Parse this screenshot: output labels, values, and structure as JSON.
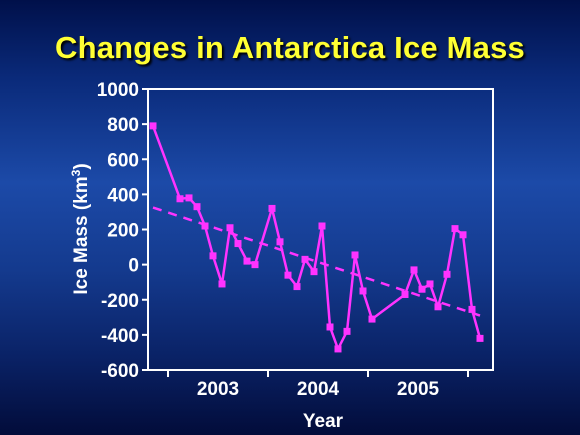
{
  "chart_data": {
    "type": "line",
    "title": "Changes in Antarctica Ice Mass",
    "xlabel": "Year",
    "ylabel": "Ice Mass (km",
    "ylabel_sup": "3",
    "ylabel_close": ")",
    "xlim": [
      2002.3,
      2005.75
    ],
    "ylim": [
      -600,
      1000
    ],
    "yticks": [
      1000,
      800,
      600,
      400,
      200,
      0,
      -200,
      -400,
      -600
    ],
    "xticks": [
      2003,
      2004,
      2005
    ],
    "xtick_labels": [
      "2003",
      "2004",
      "2005"
    ],
    "minor_xticks": [
      2002.5,
      2003.5,
      2004.5,
      2005.5
    ],
    "series": [
      {
        "color": "#ff33ff",
        "marker": "square",
        "x": [
          2002.35,
          2002.62,
          2002.71,
          2002.79,
          2002.87,
          2002.95,
          2003.04,
          2003.12,
          2003.2,
          2003.29,
          2003.37,
          2003.54,
          2003.62,
          2003.7,
          2003.79,
          2003.87,
          2003.96,
          2004.04,
          2004.12,
          2004.2,
          2004.29,
          2004.37,
          2004.45,
          2004.54,
          2004.87,
          2004.96,
          2005.04,
          2005.12,
          2005.2,
          2005.29,
          2005.37,
          2005.45,
          2005.54,
          2005.62
        ],
        "y": [
          790,
          375,
          380,
          330,
          220,
          50,
          -110,
          210,
          120,
          20,
          0,
          320,
          130,
          -60,
          -125,
          30,
          -40,
          220,
          -355,
          -480,
          -380,
          55,
          -150,
          -310,
          -170,
          -30,
          -140,
          -110,
          -240,
          -55,
          205,
          170,
          -255,
          -420
        ]
      },
      {
        "color": "#ff33ff",
        "style": "dashed",
        "type": "trend",
        "x": [
          2002.35,
          2005.62
        ],
        "y": [
          325,
          -290
        ]
      }
    ]
  }
}
